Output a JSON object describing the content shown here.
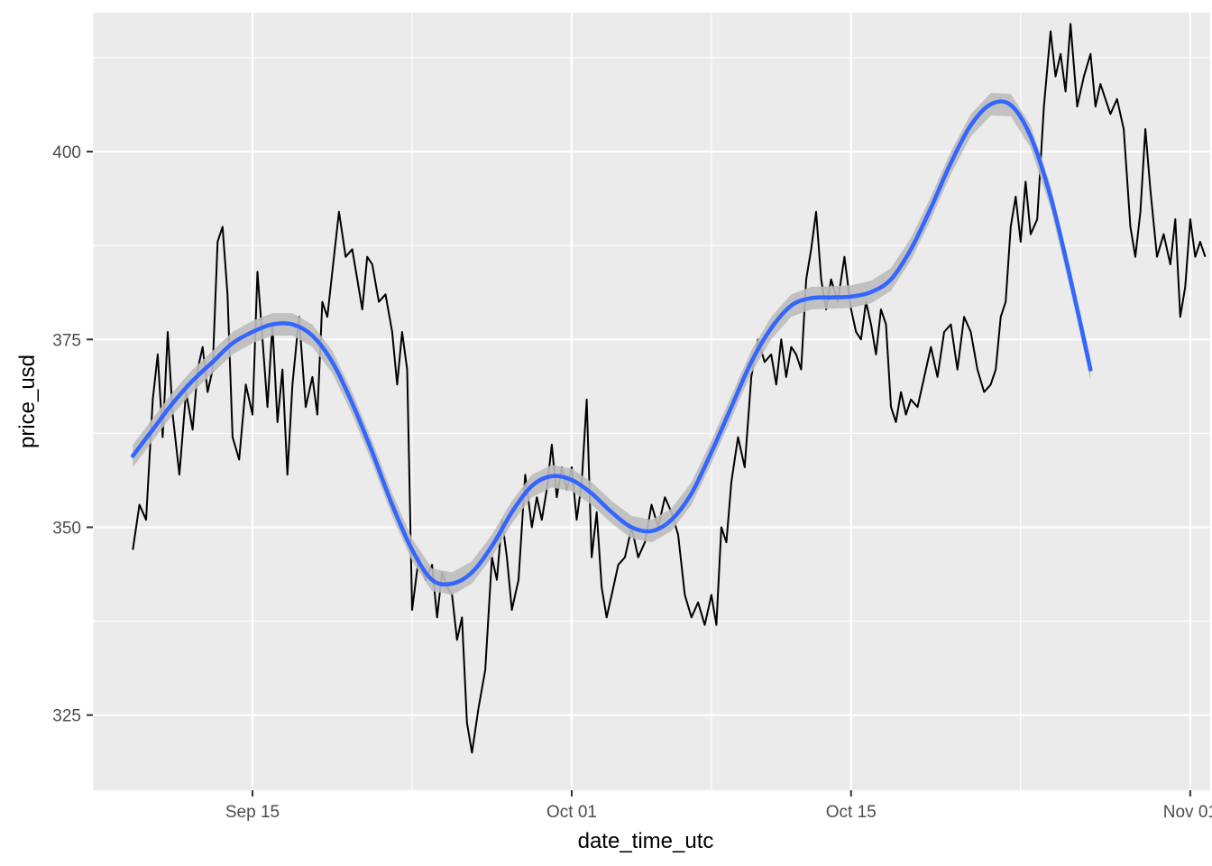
{
  "chart_data": {
    "type": "line",
    "title": "",
    "xlabel": "date_time_utc",
    "ylabel": "price_usd",
    "x_ticks": [
      {
        "label": "Sep 15",
        "date": "2015-09-15"
      },
      {
        "label": "Oct 01",
        "date": "2015-10-01"
      },
      {
        "label": "Oct 15",
        "date": "2015-10-15"
      },
      {
        "label": "Nov 01",
        "date": "2015-11-01"
      }
    ],
    "y_ticks": [
      325,
      350,
      375,
      400
    ],
    "xlim": [
      "2015-09-07",
      "2015-11-02"
    ],
    "ylim": [
      315,
      418.5
    ],
    "grid": true,
    "legend": "none",
    "series": [
      {
        "type": "line",
        "color": "#000000",
        "points": [
          [
            "2015-09-09",
            347
          ],
          [
            "2015-09-09",
            353
          ],
          [
            "2015-09-09",
            351
          ],
          [
            "2015-09-10",
            367
          ],
          [
            "2015-09-10",
            373
          ],
          [
            "2015-09-10",
            362
          ],
          [
            "2015-09-10",
            376
          ],
          [
            "2015-09-11",
            365
          ],
          [
            "2015-09-11",
            357
          ],
          [
            "2015-09-11",
            368
          ],
          [
            "2015-09-12",
            363
          ],
          [
            "2015-09-12",
            371
          ],
          [
            "2015-09-12",
            374
          ],
          [
            "2015-09-12",
            368
          ],
          [
            "2015-09-13",
            371
          ],
          [
            "2015-09-13",
            388
          ],
          [
            "2015-09-13",
            390
          ],
          [
            "2015-09-13",
            381
          ],
          [
            "2015-09-14",
            362
          ],
          [
            "2015-09-14",
            359
          ],
          [
            "2015-09-14",
            369
          ],
          [
            "2015-09-15",
            365
          ],
          [
            "2015-09-15",
            384
          ],
          [
            "2015-09-15",
            375
          ],
          [
            "2015-09-15",
            366
          ],
          [
            "2015-09-16",
            377
          ],
          [
            "2015-09-16",
            364
          ],
          [
            "2015-09-16",
            371
          ],
          [
            "2015-09-16",
            357
          ],
          [
            "2015-09-17",
            369
          ],
          [
            "2015-09-17",
            378
          ],
          [
            "2015-09-17",
            366
          ],
          [
            "2015-09-18",
            370
          ],
          [
            "2015-09-18",
            365
          ],
          [
            "2015-09-18",
            380
          ],
          [
            "2015-09-18",
            378
          ],
          [
            "2015-09-19",
            384
          ],
          [
            "2015-09-19",
            392
          ],
          [
            "2015-09-19",
            386
          ],
          [
            "2015-09-20",
            387
          ],
          [
            "2015-09-20",
            383
          ],
          [
            "2015-09-20",
            379
          ],
          [
            "2015-09-20",
            386
          ],
          [
            "2015-09-21",
            385
          ],
          [
            "2015-09-21",
            380
          ],
          [
            "2015-09-21",
            381
          ],
          [
            "2015-09-22",
            376
          ],
          [
            "2015-09-22",
            369
          ],
          [
            "2015-09-22",
            376
          ],
          [
            "2015-09-22",
            371
          ],
          [
            "2015-09-23",
            339
          ],
          [
            "2015-09-23",
            346
          ],
          [
            "2015-09-23",
            343
          ],
          [
            "2015-09-24",
            345
          ],
          [
            "2015-09-24",
            338
          ],
          [
            "2015-09-24",
            344
          ],
          [
            "2015-09-24",
            342
          ],
          [
            "2015-09-25",
            341
          ],
          [
            "2015-09-25",
            335
          ],
          [
            "2015-09-25",
            338
          ],
          [
            "2015-09-25",
            324
          ],
          [
            "2015-09-26",
            320
          ],
          [
            "2015-09-26",
            326
          ],
          [
            "2015-09-26",
            331
          ],
          [
            "2015-09-27",
            346
          ],
          [
            "2015-09-27",
            343
          ],
          [
            "2015-09-27",
            351
          ],
          [
            "2015-09-27",
            346
          ],
          [
            "2015-09-28",
            339
          ],
          [
            "2015-09-28",
            343
          ],
          [
            "2015-09-28",
            357
          ],
          [
            "2015-09-29",
            350
          ],
          [
            "2015-09-29",
            354
          ],
          [
            "2015-09-29",
            351
          ],
          [
            "2015-09-29",
            355
          ],
          [
            "2015-09-30",
            361
          ],
          [
            "2015-09-30",
            354
          ],
          [
            "2015-09-30",
            358
          ],
          [
            "2015-09-30",
            355
          ],
          [
            "2015-10-01",
            358
          ],
          [
            "2015-10-01",
            351
          ],
          [
            "2015-10-01",
            356
          ],
          [
            "2015-10-01",
            367
          ],
          [
            "2015-10-02",
            346
          ],
          [
            "2015-10-02",
            352
          ],
          [
            "2015-10-02",
            342
          ],
          [
            "2015-10-02",
            338
          ],
          [
            "2015-10-03",
            341
          ],
          [
            "2015-10-03",
            345
          ],
          [
            "2015-10-03",
            346
          ],
          [
            "2015-10-04",
            350
          ],
          [
            "2015-10-04",
            346
          ],
          [
            "2015-10-04",
            348
          ],
          [
            "2015-10-05",
            353
          ],
          [
            "2015-10-05",
            350
          ],
          [
            "2015-10-05",
            354
          ],
          [
            "2015-10-06",
            352
          ],
          [
            "2015-10-06",
            349
          ],
          [
            "2015-10-06",
            341
          ],
          [
            "2015-10-07",
            338
          ],
          [
            "2015-10-07",
            340
          ],
          [
            "2015-10-07",
            337
          ],
          [
            "2015-10-08",
            341
          ],
          [
            "2015-10-08",
            337
          ],
          [
            "2015-10-08",
            350
          ],
          [
            "2015-10-08",
            348
          ],
          [
            "2015-10-09",
            356
          ],
          [
            "2015-10-09",
            362
          ],
          [
            "2015-10-09",
            358
          ],
          [
            "2015-10-10",
            370
          ],
          [
            "2015-10-10",
            375
          ],
          [
            "2015-10-10",
            372
          ],
          [
            "2015-10-11",
            373
          ],
          [
            "2015-10-11",
            369
          ],
          [
            "2015-10-11",
            375
          ],
          [
            "2015-10-11",
            370
          ],
          [
            "2015-10-12",
            374
          ],
          [
            "2015-10-12",
            373
          ],
          [
            "2015-10-12",
            371
          ],
          [
            "2015-10-12",
            383
          ],
          [
            "2015-10-13",
            387
          ],
          [
            "2015-10-13",
            392
          ],
          [
            "2015-10-13",
            383
          ],
          [
            "2015-10-13",
            379
          ],
          [
            "2015-10-14",
            383
          ],
          [
            "2015-10-14",
            380
          ],
          [
            "2015-10-14",
            386
          ],
          [
            "2015-10-15",
            379
          ],
          [
            "2015-10-15",
            376
          ],
          [
            "2015-10-15",
            375
          ],
          [
            "2015-10-15",
            380
          ],
          [
            "2015-10-16",
            377
          ],
          [
            "2015-10-16",
            373
          ],
          [
            "2015-10-16",
            379
          ],
          [
            "2015-10-16",
            377
          ],
          [
            "2015-10-17",
            366
          ],
          [
            "2015-10-17",
            364
          ],
          [
            "2015-10-17",
            368
          ],
          [
            "2015-10-17",
            365
          ],
          [
            "2015-10-18",
            367
          ],
          [
            "2015-10-18",
            366
          ],
          [
            "2015-10-18",
            370
          ],
          [
            "2015-10-19",
            374
          ],
          [
            "2015-10-19",
            370
          ],
          [
            "2015-10-19",
            376
          ],
          [
            "2015-10-20",
            377
          ],
          [
            "2015-10-20",
            371
          ],
          [
            "2015-10-20",
            378
          ],
          [
            "2015-10-21",
            376
          ],
          [
            "2015-10-21",
            371
          ],
          [
            "2015-10-21",
            368
          ],
          [
            "2015-10-22",
            369
          ],
          [
            "2015-10-22",
            371
          ],
          [
            "2015-10-22",
            378
          ],
          [
            "2015-10-22",
            380
          ],
          [
            "2015-10-23",
            390
          ],
          [
            "2015-10-23",
            394
          ],
          [
            "2015-10-23",
            388
          ],
          [
            "2015-10-23",
            396
          ],
          [
            "2015-10-24",
            389
          ],
          [
            "2015-10-24",
            391
          ],
          [
            "2015-10-24",
            406
          ],
          [
            "2015-10-25",
            416
          ],
          [
            "2015-10-25",
            410
          ],
          [
            "2015-10-25",
            413
          ],
          [
            "2015-10-25",
            408
          ],
          [
            "2015-10-26",
            417
          ],
          [
            "2015-10-26",
            406
          ],
          [
            "2015-10-26",
            410
          ],
          [
            "2015-10-27",
            413
          ],
          [
            "2015-10-27",
            406
          ],
          [
            "2015-10-27",
            409
          ],
          [
            "2015-10-27",
            407
          ],
          [
            "2015-10-28",
            405
          ],
          [
            "2015-10-28",
            407
          ],
          [
            "2015-10-28",
            403
          ],
          [
            "2015-10-29",
            390
          ],
          [
            "2015-10-29",
            386
          ],
          [
            "2015-10-29",
            392
          ],
          [
            "2015-10-29",
            403
          ],
          [
            "2015-10-30",
            395
          ],
          [
            "2015-10-30",
            386
          ],
          [
            "2015-10-30",
            389
          ],
          [
            "2015-10-31",
            385
          ],
          [
            "2015-10-31",
            391
          ],
          [
            "2015-10-31",
            378
          ],
          [
            "2015-10-31",
            382
          ],
          [
            "2015-11-01",
            391
          ],
          [
            "2015-11-01",
            386
          ],
          [
            "2015-11-01",
            388
          ],
          [
            "2015-11-01",
            386
          ]
        ]
      },
      {
        "type": "smooth",
        "color": "#3366ff",
        "band_color": "#bdbdbd",
        "points": [
          [
            "2015-09-09",
            359.5
          ],
          [
            "2015-09-10",
            363
          ],
          [
            "2015-09-11",
            366.5
          ],
          [
            "2015-09-12",
            369.5
          ],
          [
            "2015-09-13",
            372
          ],
          [
            "2015-09-14",
            374.5
          ],
          [
            "2015-09-15",
            376
          ],
          [
            "2015-09-16",
            377
          ],
          [
            "2015-09-17",
            377
          ],
          [
            "2015-09-18",
            375.5
          ],
          [
            "2015-09-19",
            372
          ],
          [
            "2015-09-20",
            366.5
          ],
          [
            "2015-09-21",
            360
          ],
          [
            "2015-09-22",
            353
          ],
          [
            "2015-09-23",
            347
          ],
          [
            "2015-09-24",
            343
          ],
          [
            "2015-09-25",
            342.5
          ],
          [
            "2015-09-26",
            344
          ],
          [
            "2015-09-27",
            347.5
          ],
          [
            "2015-09-28",
            352
          ],
          [
            "2015-09-29",
            355.5
          ],
          [
            "2015-09-30",
            356.8
          ],
          [
            "2015-10-01",
            356.3
          ],
          [
            "2015-10-02",
            354.5
          ],
          [
            "2015-10-03",
            352
          ],
          [
            "2015-10-04",
            350
          ],
          [
            "2015-10-05",
            349.5
          ],
          [
            "2015-10-06",
            351
          ],
          [
            "2015-10-07",
            354.5
          ],
          [
            "2015-10-08",
            360
          ],
          [
            "2015-10-09",
            366
          ],
          [
            "2015-10-10",
            372
          ],
          [
            "2015-10-11",
            376.5
          ],
          [
            "2015-10-12",
            379.5
          ],
          [
            "2015-10-13",
            380.5
          ],
          [
            "2015-10-14",
            380.6
          ],
          [
            "2015-10-15",
            380.7
          ],
          [
            "2015-10-16",
            381.3
          ],
          [
            "2015-10-17",
            383
          ],
          [
            "2015-10-18",
            387
          ],
          [
            "2015-10-19",
            392.5
          ],
          [
            "2015-10-20",
            398.5
          ],
          [
            "2015-10-21",
            403.5
          ],
          [
            "2015-10-22",
            406.3
          ],
          [
            "2015-10-23",
            406.2
          ],
          [
            "2015-10-24",
            402
          ],
          [
            "2015-10-25",
            394
          ],
          [
            "2015-10-26",
            383
          ],
          [
            "2015-10-27",
            371
          ]
        ],
        "band": 1.5
      }
    ]
  }
}
